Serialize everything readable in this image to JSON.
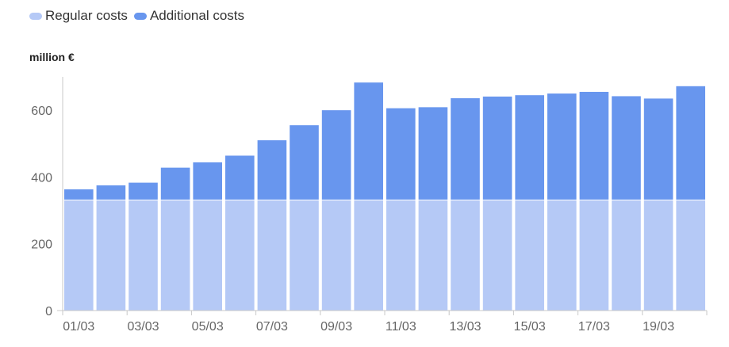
{
  "chart_data": {
    "type": "bar",
    "stacked": true,
    "unit_label": "million €",
    "categories": [
      "01/03",
      "02/03",
      "03/03",
      "04/03",
      "05/03",
      "06/03",
      "07/03",
      "08/03",
      "09/03",
      "10/03",
      "11/03",
      "12/03",
      "13/03",
      "14/03",
      "15/03",
      "16/03",
      "17/03",
      "18/03",
      "19/03",
      "20/03"
    ],
    "series": [
      {
        "name": "Regular costs",
        "color": "#b5c9f6",
        "values": [
          330,
          330,
          330,
          330,
          330,
          330,
          330,
          330,
          330,
          330,
          330,
          330,
          330,
          330,
          330,
          330,
          330,
          330,
          330,
          330
        ]
      },
      {
        "name": "Additional costs",
        "color": "#6896ee",
        "values": [
          33,
          45,
          53,
          98,
          114,
          134,
          180,
          225,
          270,
          353,
          276,
          279,
          306,
          311,
          315,
          320,
          325,
          312,
          305,
          342
        ]
      }
    ],
    "ylim": [
      0,
      700
    ],
    "yticks": [
      0,
      200,
      400,
      600
    ],
    "x_tick_labels": [
      "01/03",
      "03/03",
      "05/03",
      "07/03",
      "09/03",
      "11/03",
      "13/03",
      "15/03",
      "17/03",
      "19/03"
    ],
    "legend_position": "top-left",
    "grid": false
  }
}
